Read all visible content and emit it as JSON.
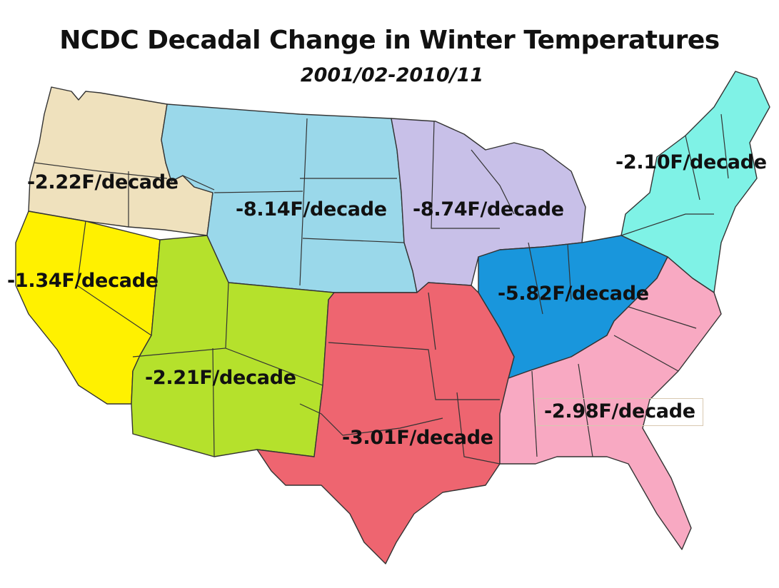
{
  "title": "NCDC Decadal Change in Winter Temperatures",
  "subtitle": "2001/02-2010/11",
  "regions": [
    {
      "id": "northwest",
      "label": "-2.22F/decade",
      "color": "#efe1bd"
    },
    {
      "id": "west",
      "label": "-1.34F/decade",
      "color": "#fff100"
    },
    {
      "id": "northern-rockies",
      "label": "-8.14F/decade",
      "color": "#9ad8ea"
    },
    {
      "id": "upper-midwest",
      "label": "-8.74F/decade",
      "color": "#c8c0e8"
    },
    {
      "id": "northeast",
      "label": "-2.10F/decade",
      "color": "#7ff2e6"
    },
    {
      "id": "southwest",
      "label": "-2.21F/decade",
      "color": "#b5e12c"
    },
    {
      "id": "ohio-valley",
      "label": "-5.82F/decade",
      "color": "#1996dc"
    },
    {
      "id": "south",
      "label": "-3.01F/decade",
      "color": "#ee6570"
    },
    {
      "id": "southeast",
      "label": "-2.98F/decade",
      "color": "#f8a9c2"
    }
  ]
}
